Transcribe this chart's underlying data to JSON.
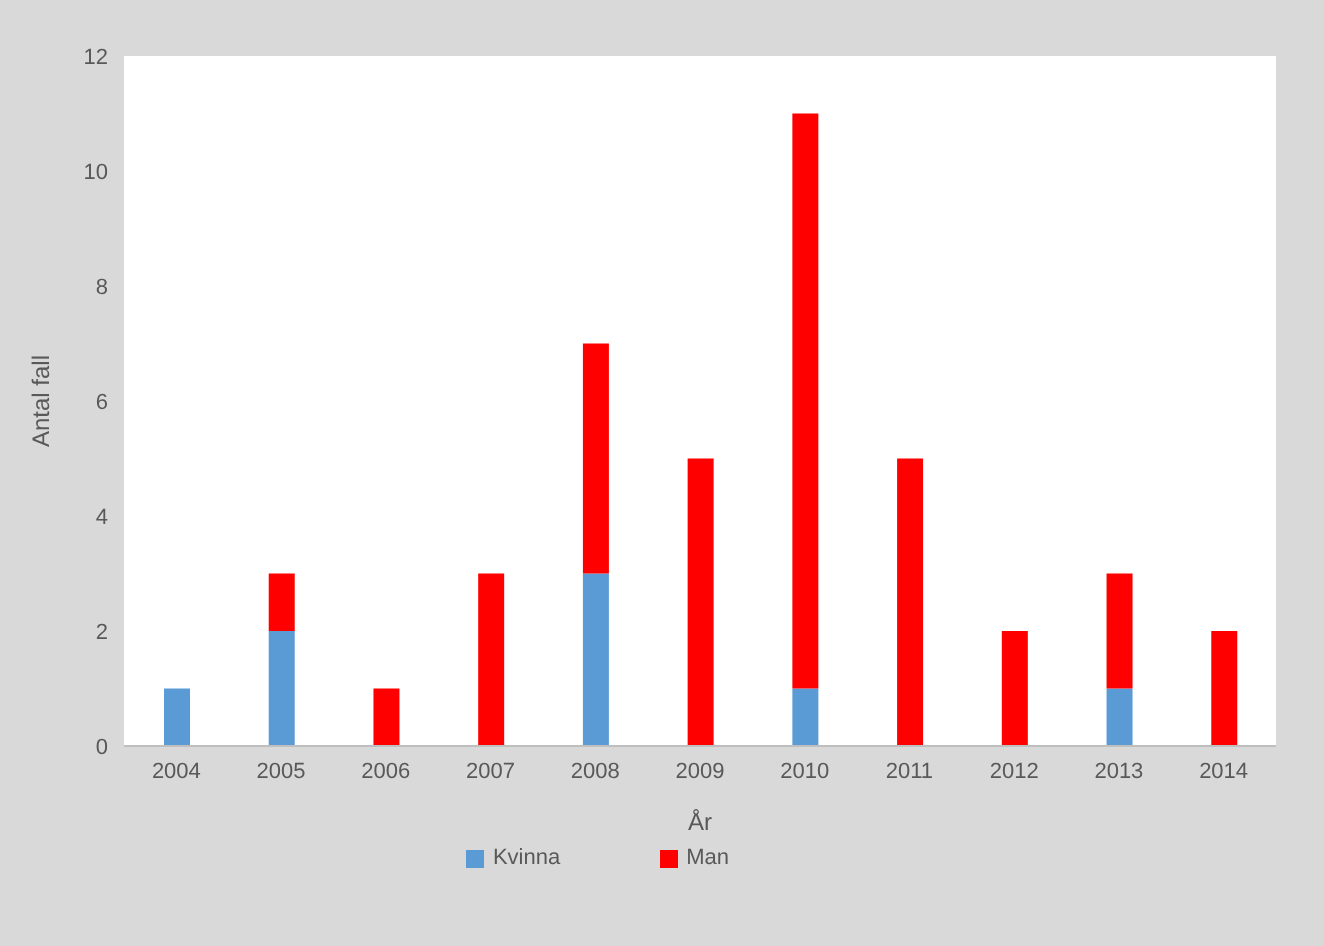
{
  "chart_data": {
    "type": "bar",
    "stacked": true,
    "xlabel": "År",
    "ylabel": "Antal fall",
    "categories": [
      "2004",
      "2005",
      "2006",
      "2007",
      "2008",
      "2009",
      "2010",
      "2011",
      "2012",
      "2013",
      "2014"
    ],
    "series": [
      {
        "name": "Kvinna",
        "color": "#5b9bd5",
        "values": [
          1,
          2,
          0,
          0,
          3,
          0,
          1,
          0,
          0,
          1,
          0
        ]
      },
      {
        "name": "Man",
        "color": "#ff0000",
        "values": [
          0,
          1,
          1,
          3,
          4,
          5,
          10,
          5,
          2,
          2,
          2
        ]
      }
    ],
    "ylim": [
      0,
      12
    ],
    "yticks": [
      0,
      2,
      4,
      6,
      8,
      10,
      12
    ],
    "grid": false,
    "legend": "bottom"
  }
}
